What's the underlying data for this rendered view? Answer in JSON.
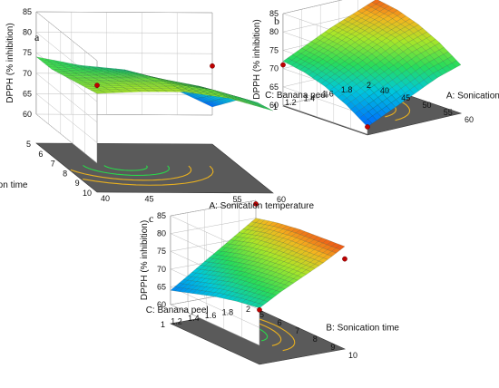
{
  "chart_data": [
    {
      "type": "surface3d",
      "panel": "a",
      "zlabel": "DPPH (% inhibition)",
      "xlabel": "A: Sonication temperature",
      "ylabel": "B: Sonication time",
      "x_ticks": [
        "40",
        "45",
        "55",
        "60"
      ],
      "y_ticks": [
        "5",
        "6",
        "7",
        "8",
        "9",
        "10"
      ],
      "z_ticks": [
        "60",
        "65",
        "70",
        "75",
        "80",
        "85"
      ],
      "xlim": [
        40,
        60
      ],
      "ylim": [
        5,
        10
      ],
      "zlim": [
        60,
        85
      ],
      "x_grid": [
        40,
        45,
        50,
        55,
        60
      ],
      "y_grid": [
        5,
        6.25,
        7.5,
        8.75,
        10
      ],
      "z_grid": [
        [
          74,
          72,
          71,
          67,
          62
        ],
        [
          74,
          73.5,
          73,
          70,
          66
        ],
        [
          75,
          75,
          75,
          73,
          70
        ],
        [
          76,
          76.5,
          76.5,
          75,
          72
        ],
        [
          77,
          77.5,
          77.5,
          76,
          73
        ]
      ],
      "design_points": [
        {
          "x": 40,
          "y": 10,
          "z": 79
        },
        {
          "x": 60,
          "y": 5,
          "z": 72
        }
      ]
    },
    {
      "type": "surface3d",
      "panel": "b",
      "zlabel": "DPPH (% inhibition)",
      "xlabel": "A: Sonication temperature",
      "ylabel": "C: Banana peel",
      "x_ticks": [
        "40",
        "45",
        "50",
        "55",
        "60"
      ],
      "y_ticks": [
        "1",
        "1.2",
        "1.4",
        "1.6",
        "1.8",
        "2"
      ],
      "z_ticks": [
        "60",
        "65",
        "70",
        "75",
        "80",
        "85"
      ],
      "xlim": [
        40,
        60
      ],
      "ylim": [
        1,
        2
      ],
      "zlim": [
        60,
        85
      ],
      "x_grid": [
        40,
        45,
        50,
        55,
        60
      ],
      "y_grid": [
        1,
        1.25,
        1.5,
        1.75,
        2
      ],
      "z_grid": [
        [
          72,
          71,
          69,
          66,
          62
        ],
        [
          75,
          74,
          72,
          69,
          65
        ],
        [
          78,
          77,
          75,
          72,
          68
        ],
        [
          80.5,
          79.5,
          78,
          75,
          71
        ],
        [
          83,
          82,
          80,
          77,
          73
        ]
      ],
      "design_points": [
        {
          "x": 40,
          "y": 2,
          "z": 84
        },
        {
          "x": 40,
          "y": 1,
          "z": 71
        },
        {
          "x": 60,
          "y": 1,
          "z": 62
        }
      ]
    },
    {
      "type": "surface3d",
      "panel": "c",
      "zlabel": "DPPH (% inhibition)",
      "xlabel": "B: Sonication time",
      "ylabel": "C: Banana peel",
      "x_ticks": [
        "5",
        "6",
        "7",
        "8",
        "9",
        "10"
      ],
      "y_ticks": [
        "1",
        "1.2",
        "1.4",
        "1.6",
        "1.8",
        "2"
      ],
      "z_ticks": [
        "60",
        "65",
        "70",
        "75",
        "80",
        "85"
      ],
      "xlim": [
        5,
        10
      ],
      "ylim": [
        1,
        2
      ],
      "zlim": [
        60,
        85
      ],
      "x_grid": [
        5,
        6.25,
        7.5,
        8.75,
        10
      ],
      "y_grid": [
        1,
        1.25,
        1.5,
        1.75,
        2
      ],
      "z_grid": [
        [
          64,
          66,
          68,
          69.5,
          70.5
        ],
        [
          68,
          70,
          72,
          73,
          74
        ],
        [
          72,
          74,
          75.5,
          76.5,
          77
        ],
        [
          76,
          78,
          79,
          79.5,
          80
        ],
        [
          80,
          81.5,
          82.5,
          83,
          83.5
        ]
      ],
      "design_points": [
        {
          "x": 5,
          "y": 2,
          "z": 84
        },
        {
          "x": 10,
          "y": 2,
          "z": 80
        },
        {
          "x": 10,
          "y": 1,
          "z": 70
        }
      ]
    }
  ]
}
